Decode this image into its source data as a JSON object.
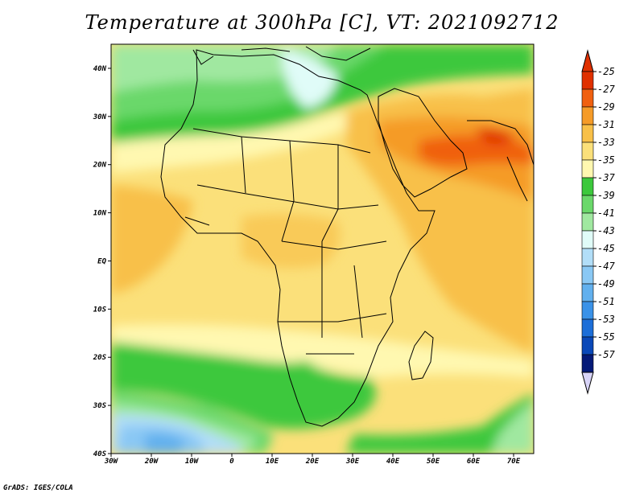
{
  "title": "Temperature at 300hPa [C], VT: 2021092712",
  "credit": "GrADS: IGES/COLA",
  "map": {
    "lon_range": [
      -30,
      75
    ],
    "lat_range": [
      -40,
      45
    ],
    "lat_ticks": [
      {
        "value": 40,
        "label": "40N"
      },
      {
        "value": 30,
        "label": "30N"
      },
      {
        "value": 20,
        "label": "20N"
      },
      {
        "value": 10,
        "label": "10N"
      },
      {
        "value": 0,
        "label": "EQ"
      },
      {
        "value": -10,
        "label": "10S"
      },
      {
        "value": -20,
        "label": "20S"
      },
      {
        "value": -30,
        "label": "30S"
      },
      {
        "value": -40,
        "label": "40S"
      }
    ],
    "lon_ticks": [
      {
        "value": -30,
        "label": "30W"
      },
      {
        "value": -20,
        "label": "20W"
      },
      {
        "value": -10,
        "label": "10W"
      },
      {
        "value": 0,
        "label": "0"
      },
      {
        "value": 10,
        "label": "10E"
      },
      {
        "value": 20,
        "label": "20E"
      },
      {
        "value": 30,
        "label": "30E"
      },
      {
        "value": 40,
        "label": "40E"
      },
      {
        "value": 50,
        "label": "50E"
      },
      {
        "value": 60,
        "label": "60E"
      },
      {
        "value": 70,
        "label": "70E"
      }
    ]
  },
  "colorbar": {
    "levels": [
      "-25",
      "-27",
      "-29",
      "-31",
      "-33",
      "-35",
      "-37",
      "-39",
      "-41",
      "-43",
      "-45",
      "-47",
      "-49",
      "-51",
      "-53",
      "-55",
      "-57"
    ],
    "colors": [
      "#e03000",
      "#f06010",
      "#f59b28",
      "#f8c048",
      "#fbe07a",
      "#fff8b0",
      "#3cc83c",
      "#6ad86a",
      "#a0e8a0",
      "#e0fcf8",
      "#b2def8",
      "#8ac8f4",
      "#62b0ee",
      "#3a92e8",
      "#1c6ed8",
      "#0a48b8",
      "#051a78"
    ],
    "top_tip_color": "#e03000",
    "bottom_tip_color": "#d8d4f8"
  }
}
